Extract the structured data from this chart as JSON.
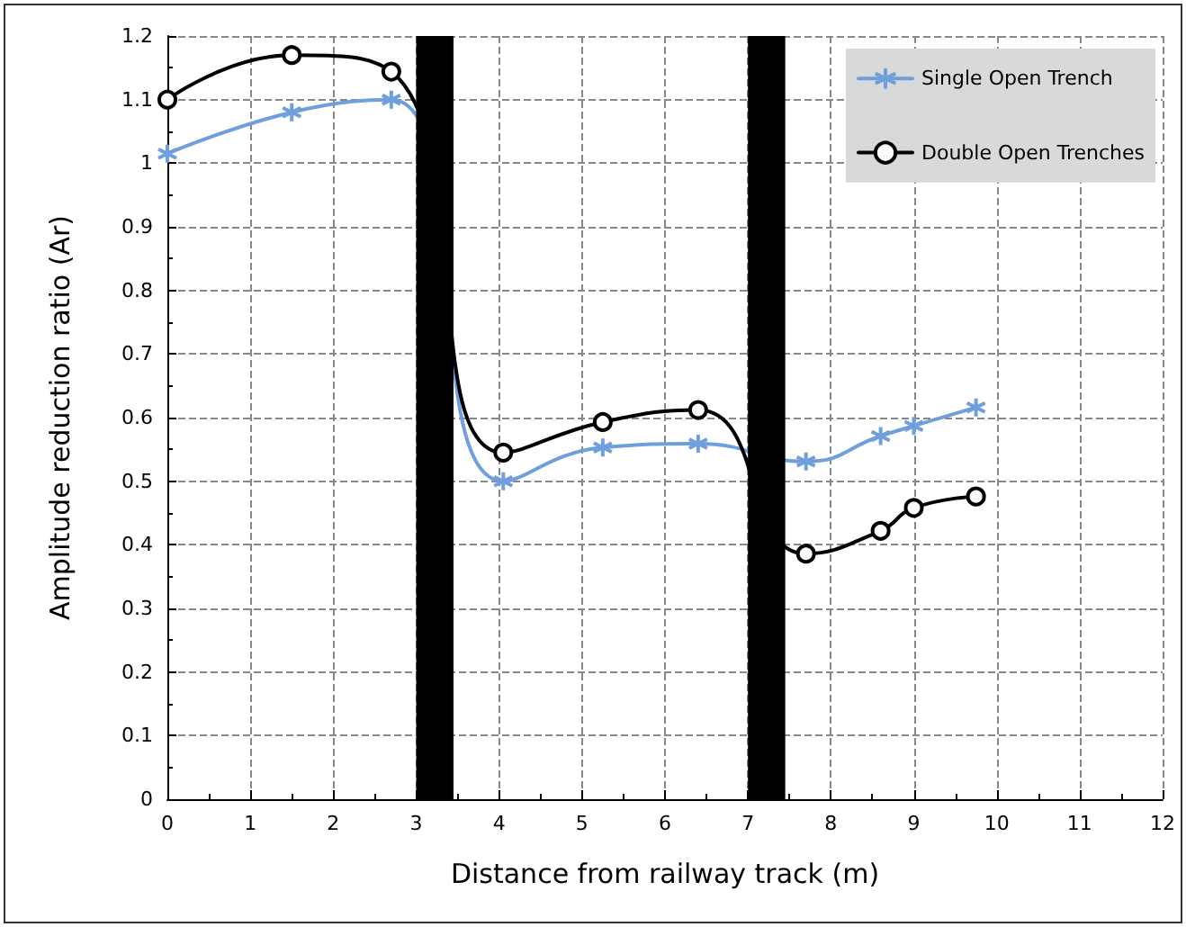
{
  "chart_data": {
    "type": "line",
    "xlabel": "Distance from railway track (m)",
    "ylabel": "Amplitude reduction ratio (Ar)",
    "xlim": [
      0,
      12
    ],
    "xticks": [
      0,
      1,
      2,
      3,
      4,
      5,
      6,
      7,
      8,
      9,
      10,
      11,
      12
    ],
    "ylim": [
      0,
      1.2
    ],
    "yticks": [
      0,
      0.1,
      0.2,
      0.3,
      0.4,
      0.5,
      0.6,
      0.7,
      0.8,
      0.9,
      1,
      1.1,
      1.2
    ],
    "grid": true,
    "legend": "top right",
    "line_style": "solid",
    "series": [
      {
        "name": "Single Open Trench",
        "color": "#6f9fdc",
        "marker": "cross",
        "x": [
          0,
          1.5,
          2.7,
          4.05,
          5.25,
          6.4,
          7.7,
          8.6,
          9.0,
          9.75
        ],
        "values": [
          1.015,
          1.08,
          1.1,
          0.5,
          0.553,
          0.559,
          0.531,
          0.571,
          0.587,
          0.616
        ]
      },
      {
        "name": "Double Open Trenches",
        "color": "#000000",
        "marker": "circle",
        "x": [
          0,
          1.5,
          2.7,
          4.05,
          5.25,
          6.4,
          7.7,
          8.6,
          9.0,
          9.75
        ],
        "values": [
          1.1,
          1.17,
          1.144,
          0.545,
          0.593,
          0.612,
          0.386,
          0.422,
          0.458,
          0.476
        ]
      }
    ],
    "bands": [
      {
        "axis": "x",
        "from": 3.0,
        "to": 3.45,
        "color": "#000000"
      },
      {
        "axis": "x",
        "from": 7.0,
        "to": 7.45,
        "color": "#000000"
      }
    ]
  }
}
